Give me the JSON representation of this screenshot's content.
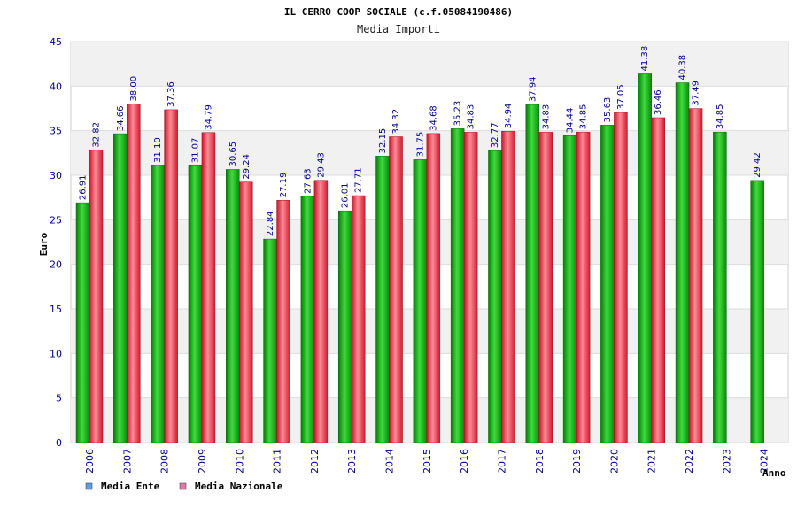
{
  "chart_data": {
    "type": "bar",
    "title": "IL CERRO COOP SOCIALE (c.f.05084190486)",
    "subtitle": "Media Importi",
    "xlabel": "Anno",
    "ylabel": "Euro",
    "ylim": [
      0,
      45
    ],
    "yticks": [
      0,
      5,
      10,
      15,
      20,
      25,
      30,
      35,
      40,
      45
    ],
    "grid": true,
    "legend_position": "bottom-left",
    "categories": [
      "2006",
      "2007",
      "2008",
      "2009",
      "2010",
      "2011",
      "2012",
      "2013",
      "2014",
      "2015",
      "2016",
      "2017",
      "2018",
      "2019",
      "2020",
      "2021",
      "2022",
      "2023",
      "2024"
    ],
    "series": [
      {
        "name": "Media Ente",
        "color": "#22aa22",
        "values": [
          26.91,
          34.66,
          31.1,
          31.07,
          30.65,
          22.84,
          27.63,
          26.01,
          32.15,
          31.75,
          35.23,
          32.77,
          37.94,
          34.44,
          35.63,
          41.38,
          40.38,
          34.85,
          29.42
        ],
        "labels": [
          "26.91",
          "34.66",
          "31.10",
          "31.07",
          "30.65",
          "22.84",
          "27.63",
          "26.01",
          "32.15",
          "31.75",
          "35.23",
          "32.77",
          "37.94",
          "34.44",
          "35.63",
          "41.38",
          "40.38",
          "34.85",
          "29.42"
        ]
      },
      {
        "name": "Media Nazionale",
        "color": "#e03040",
        "values": [
          32.82,
          38.0,
          37.36,
          34.79,
          29.24,
          27.19,
          29.43,
          27.71,
          34.32,
          34.68,
          34.83,
          34.94,
          34.83,
          34.85,
          37.05,
          36.46,
          37.49,
          null,
          null
        ],
        "labels": [
          "32.82",
          "38.00",
          "37.36",
          "34.79",
          "29.24",
          "27.19",
          "29.43",
          "27.71",
          "34.32",
          "34.68",
          "34.83",
          "34.94",
          "34.83",
          "34.85",
          "37.05",
          "36.46",
          "37.49",
          "",
          ""
        ]
      }
    ],
    "legend": [
      {
        "name": "Media Ente",
        "swatch": "#5ba0e0"
      },
      {
        "name": "Media Nazionale",
        "swatch": "#e07aa8"
      }
    ]
  }
}
